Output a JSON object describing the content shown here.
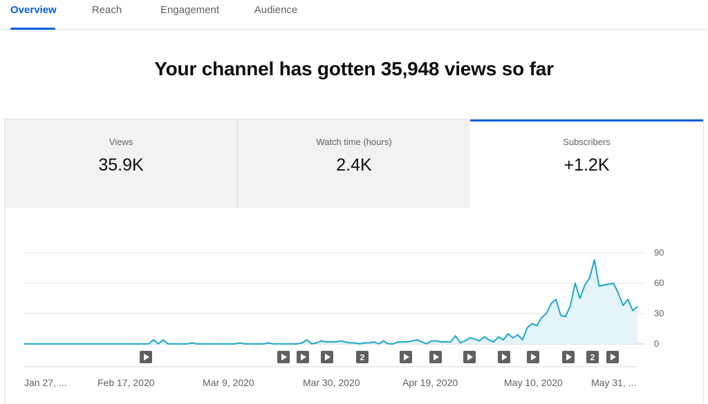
{
  "tabs": [
    {
      "label": "Overview",
      "active": true
    },
    {
      "label": "Reach",
      "active": false
    },
    {
      "label": "Engagement",
      "active": false
    },
    {
      "label": "Audience",
      "active": false
    }
  ],
  "headline": "Your channel has gotten 35,948 views so far",
  "metrics": [
    {
      "label": "Views",
      "value": "35.9K",
      "selected": false
    },
    {
      "label": "Watch time (hours)",
      "value": "2.4K",
      "selected": false
    },
    {
      "label": "Subscribers",
      "value": "+1.2K",
      "selected": true
    }
  ],
  "colors": {
    "accent": "#065fd4",
    "line": "#1aa6cf",
    "area": "#e4f4f9"
  },
  "chart_data": {
    "type": "area",
    "series": [
      {
        "metric": "Subscribers",
        "values": [
          0,
          0,
          0,
          0,
          0,
          0,
          0,
          0,
          0,
          0,
          0,
          0,
          0,
          0,
          0,
          0,
          0,
          0,
          0,
          0,
          0,
          0,
          0,
          0,
          0,
          0,
          0,
          4,
          0,
          4,
          0,
          0,
          0,
          0,
          0,
          1,
          0,
          0,
          0,
          0,
          0,
          0,
          0,
          0,
          0,
          1,
          0,
          0,
          0,
          0,
          0,
          1,
          0,
          0,
          0,
          0,
          0,
          0,
          1,
          4,
          0,
          1,
          3,
          2,
          2,
          2,
          3,
          2,
          1,
          1,
          0,
          1,
          1,
          2,
          0,
          3,
          0,
          0,
          2,
          2,
          2,
          3,
          4,
          2,
          0,
          3,
          3,
          2,
          2,
          2,
          8,
          1,
          3,
          6,
          5,
          3,
          7,
          4,
          2,
          7,
          4,
          10,
          6,
          9,
          4,
          16,
          20,
          18,
          26,
          30,
          40,
          44,
          28,
          27,
          38,
          60,
          45,
          58,
          65,
          83,
          57,
          58,
          59,
          60,
          50,
          38,
          44,
          33,
          37
        ]
      }
    ],
    "x_ticks": [
      "Jan 27, ...",
      "Feb 17, 2020",
      "Mar 9, 2020",
      "Mar 30, 2020",
      "Apr 19, 2020",
      "May 10, 2020",
      "May 31, ..."
    ],
    "y_ticks": [
      0,
      30,
      60,
      90
    ],
    "ylim": [
      0,
      90
    ],
    "grid": true,
    "video_markers": [
      {
        "x": 211,
        "label": ""
      },
      {
        "x": 410,
        "label": ""
      },
      {
        "x": 438,
        "label": ""
      },
      {
        "x": 473,
        "label": ""
      },
      {
        "x": 524,
        "label": "2"
      },
      {
        "x": 587,
        "label": ""
      },
      {
        "x": 630,
        "label": ""
      },
      {
        "x": 679,
        "label": ""
      },
      {
        "x": 729,
        "label": ""
      },
      {
        "x": 771,
        "label": ""
      },
      {
        "x": 822,
        "label": ""
      },
      {
        "x": 857,
        "label": "2"
      },
      {
        "x": 886,
        "label": ""
      }
    ]
  }
}
